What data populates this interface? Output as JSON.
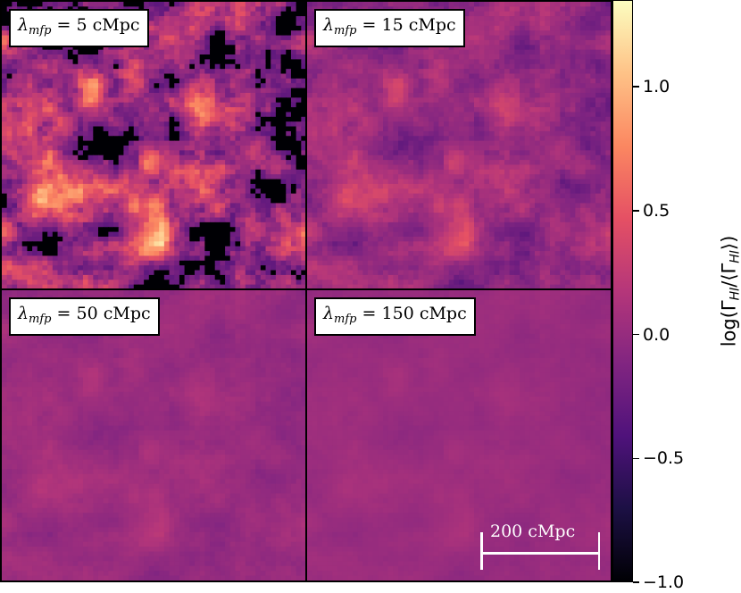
{
  "panels": [
    {
      "lambda_symbol": "λ",
      "subscript": "mfp",
      "value_text": " = 5 cMpc",
      "contrast": 2.4,
      "floor_cut": -0.35
    },
    {
      "lambda_symbol": "λ",
      "subscript": "mfp",
      "value_text": " = 15 cMpc",
      "contrast": 1.0,
      "floor_cut": -5
    },
    {
      "lambda_symbol": "λ",
      "subscript": "mfp",
      "value_text": " = 50 cMpc",
      "contrast": 0.38,
      "floor_cut": -5
    },
    {
      "lambda_symbol": "λ",
      "subscript": "mfp",
      "value_text": " = 150 cMpc",
      "contrast": 0.22,
      "floor_cut": -5
    }
  ],
  "colorbar": {
    "colormap": "magma",
    "min": -1.0,
    "max": 1.35,
    "ticks": [
      {
        "value": 1.0,
        "label": "1.0"
      },
      {
        "value": 0.5,
        "label": "0.5"
      },
      {
        "value": 0.0,
        "label": "0.0"
      },
      {
        "value": -0.5,
        "label": "−0.5"
      },
      {
        "value": -1.0,
        "label": "−1.0"
      }
    ],
    "title_prefix": "log(Γ",
    "title_sub1": "HI",
    "title_mid": "/⟨Γ",
    "title_sub2": "HI",
    "title_suffix": "⟩)"
  },
  "scalebar": {
    "label": "200 cMpc"
  },
  "colors": {
    "border": "#000000",
    "scalebar": "#ffffff"
  }
}
